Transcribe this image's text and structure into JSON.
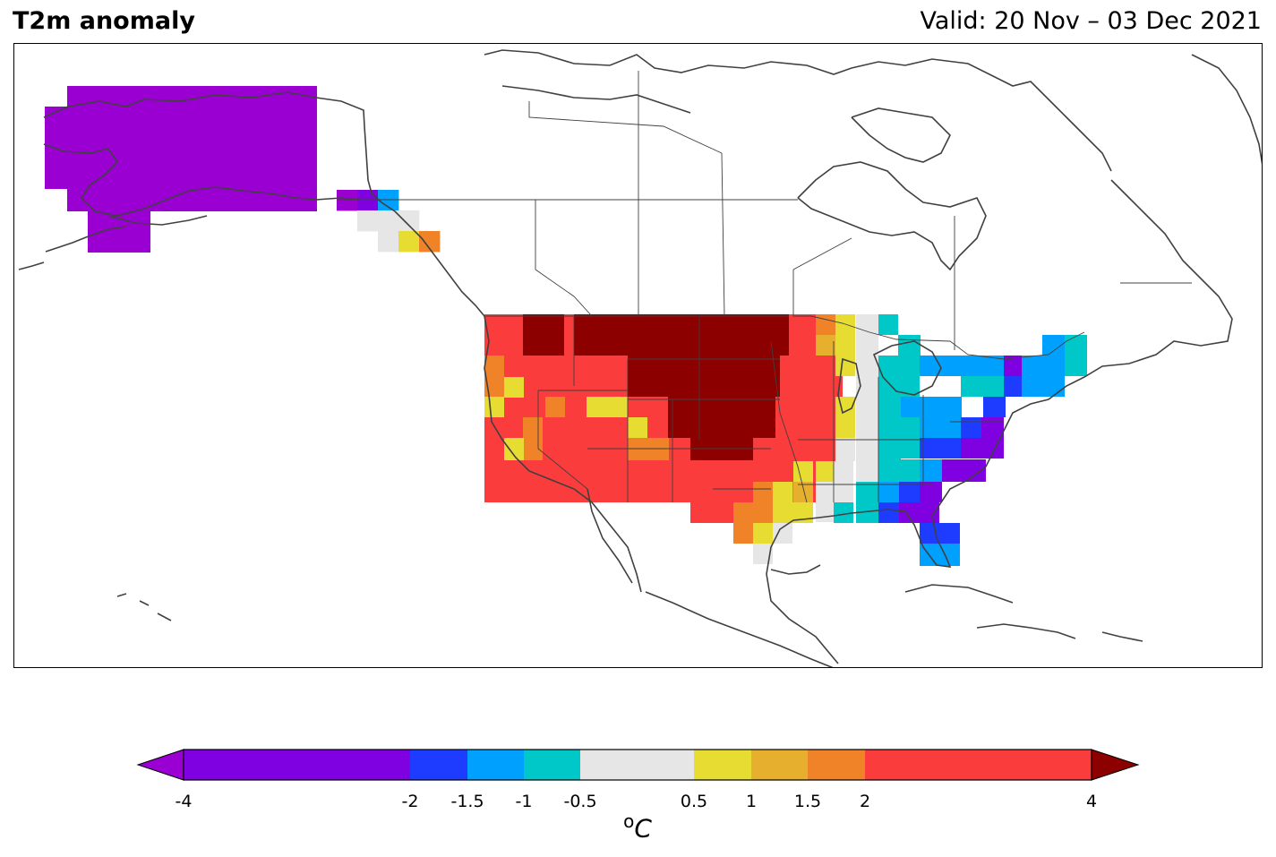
{
  "header": {
    "title": "T2m anomaly",
    "valid": "Valid: 20 Nov – 03 Dec 2021"
  },
  "legend": {
    "unit_base": "C",
    "unit_sup": "o",
    "ticks": [
      "-4",
      "-2",
      "-1.5",
      "-1",
      "-0.5",
      "0.5",
      "1",
      "1.5",
      "2",
      "4"
    ],
    "colors": {
      "lt_-4": "#9b00d3",
      "-4_-2": "#7f00e0",
      "-2_-1.5": "#1e3cff",
      "-1.5_-1": "#00a0ff",
      "-1_-0.5": "#00c8c8",
      "-0.5_0.5": "#e6e6e6",
      "0.5_1": "#e6dc32",
      "1_1.5": "#e6af2d",
      "1.5_2": "#f08228",
      "2_4": "#fa3c3c",
      "gt_4": "#8c0000"
    }
  },
  "map_cells": {
    "alaska": "lt_-4",
    "bc_coast": [
      "lt_-4",
      "-4_-2",
      "-1.5_-1",
      "-0.5_0.5",
      "0.5_1",
      "1.5_2"
    ],
    "western_us": "2_4",
    "northern_plains": "gt_4",
    "great_lakes": "-1_-0.5",
    "east_coast": "-4_-2",
    "southeast": "-2_-1.5",
    "gulf_coast": "0.5_1"
  }
}
